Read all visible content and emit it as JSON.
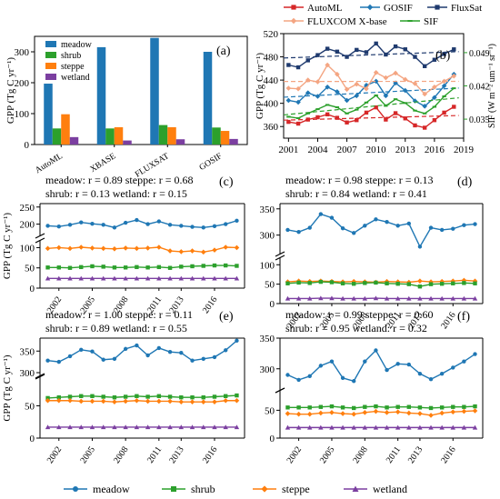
{
  "figure": {
    "legend_top": [
      {
        "name": "AutoML",
        "color": "#d62728",
        "marker": "square"
      },
      {
        "name": "GOSIF",
        "color": "#1f77b4",
        "marker": "diamond"
      },
      {
        "name": "FluxSat",
        "color": "#1f3a6e",
        "marker": "square"
      },
      {
        "name": "FLUXCOM X-base",
        "color": "#f4a582",
        "marker": "diamond"
      },
      {
        "name": "SIF",
        "color": "#2ca02c",
        "marker": "dash"
      }
    ],
    "legend_bottom": [
      {
        "name": "meadow",
        "color": "#1f77b4",
        "marker": "circle"
      },
      {
        "name": "shrub",
        "color": "#2ca02c",
        "marker": "square"
      },
      {
        "name": "steppe",
        "color": "#ff7f0e",
        "marker": "diamond"
      },
      {
        "name": "wetland",
        "color": "#7b3fa0",
        "marker": "triangle"
      }
    ]
  },
  "chart_data": [
    {
      "id": "a",
      "panel_label": "(a)",
      "type": "bar",
      "ylabel": "GPP (Tg C yr⁻¹)",
      "ylim": [
        0,
        350
      ],
      "yticks": [
        0,
        100,
        200,
        300
      ],
      "categories": [
        "AutoML",
        "XBASE",
        "FLUXSAT",
        "GOSIF"
      ],
      "series": [
        {
          "name": "meadow",
          "color": "#1f77b4",
          "values": [
            197,
            315,
            345,
            300
          ]
        },
        {
          "name": "shrub",
          "color": "#2ca02c",
          "values": [
            52,
            52,
            63,
            55
          ]
        },
        {
          "name": "steppe",
          "color": "#ff7f0e",
          "values": [
            98,
            56,
            56,
            44
          ]
        },
        {
          "name": "wetland",
          "color": "#7b3fa0",
          "values": [
            24,
            13,
            17,
            18
          ]
        }
      ],
      "legend_position": "top-left"
    },
    {
      "id": "b",
      "panel_label": "(b)",
      "type": "line",
      "ylabel": "GPP (Tg C yr⁻¹)",
      "y2label": "SIF (W m⁻² um⁻¹ sr⁻¹)",
      "ylim": [
        340,
        520
      ],
      "yticks": [
        360,
        400,
        440,
        480,
        520
      ],
      "y2lim": [
        0.031,
        0.053
      ],
      "y2ticks": [
        0.035,
        0.042,
        0.049
      ],
      "xlim": [
        2000.5,
        2019
      ],
      "xticks": [
        2001,
        2004,
        2007,
        2010,
        2013,
        2016,
        2019
      ],
      "x": [
        2001,
        2002,
        2003,
        2004,
        2005,
        2006,
        2007,
        2008,
        2009,
        2010,
        2011,
        2012,
        2013,
        2014,
        2015,
        2016,
        2017,
        2018
      ],
      "series": [
        {
          "name": "FluxSat",
          "axis": "left",
          "color": "#1f3a6e",
          "values": [
            466,
            462,
            474,
            483,
            494,
            489,
            480,
            492,
            488,
            503,
            484,
            498,
            493,
            480,
            464,
            475,
            485,
            493
          ]
        },
        {
          "name": "GOSIF",
          "axis": "left",
          "color": "#1f77b4",
          "values": [
            405,
            402,
            418,
            412,
            428,
            420,
            405,
            413,
            431,
            438,
            413,
            435,
            422,
            404,
            395,
            410,
            430,
            450
          ]
        },
        {
          "name": "FLUXCOM X-base",
          "axis": "left",
          "color": "#f4a582",
          "values": [
            426,
            425,
            440,
            437,
            466,
            450,
            424,
            433,
            425,
            453,
            444,
            452,
            441,
            434,
            416,
            428,
            438,
            447
          ]
        },
        {
          "name": "AutoML",
          "axis": "left",
          "color": "#d62728",
          "values": [
            368,
            365,
            372,
            376,
            381,
            375,
            367,
            371,
            384,
            393,
            372,
            383,
            374,
            362,
            358,
            371,
            384,
            394
          ]
        },
        {
          "name": "SIF",
          "axis": "right",
          "color": "#2ca02c",
          "values": [
            0.0355,
            0.0352,
            0.0362,
            0.0371,
            0.038,
            0.0375,
            0.0362,
            0.037,
            0.0385,
            0.04,
            0.0378,
            0.0392,
            0.0384,
            0.0368,
            0.0362,
            0.0376,
            0.0398,
            0.0415
          ]
        }
      ],
      "trend_lines": true
    },
    {
      "id": "c",
      "panel_label": "(c)",
      "type": "line",
      "ylabel": "GPP (Tg C yr⁻¹)",
      "annotations": [
        "meadow: r = 0.89 steppe: r = 0.68",
        "shrub: r = 0.13     wetland: r = 0.15"
      ],
      "x": [
        2001,
        2002,
        2003,
        2004,
        2005,
        2006,
        2007,
        2008,
        2009,
        2010,
        2011,
        2012,
        2013,
        2014,
        2015,
        2016,
        2017,
        2018
      ],
      "xticks": [
        2002,
        2005,
        2008,
        2011,
        2013,
        2016
      ],
      "upper": {
        "ylim": [
          175,
          260
        ],
        "yticks": [
          200,
          250
        ]
      },
      "lower": {
        "ylim": [
          0,
          110
        ],
        "yticks": [
          0,
          50,
          100
        ]
      },
      "series": [
        {
          "name": "meadow",
          "color": "#1f77b4",
          "segment": "upper",
          "values": [
            195,
            193,
            198,
            205,
            201,
            198,
            190,
            204,
            212,
            200,
            208,
            198,
            195,
            192,
            190,
            194,
            200,
            210
          ]
        },
        {
          "name": "steppe",
          "color": "#ff7f0e",
          "segment": "lower",
          "values": [
            98,
            100,
            98,
            101,
            99,
            98,
            97,
            99,
            98,
            99,
            101,
            92,
            90,
            92,
            89,
            94,
            101,
            100
          ]
        },
        {
          "name": "shrub",
          "color": "#2ca02c",
          "segment": "lower",
          "values": [
            51,
            51,
            50,
            52,
            54,
            53,
            51,
            51,
            52,
            51,
            52,
            50,
            53,
            54,
            55,
            56,
            56,
            55
          ]
        },
        {
          "name": "wetland",
          "color": "#7b3fa0",
          "segment": "lower",
          "values": [
            24,
            24,
            24,
            24,
            24,
            24,
            24,
            24,
            24,
            24,
            24,
            24,
            24,
            24,
            24,
            24,
            24,
            24
          ]
        }
      ]
    },
    {
      "id": "d",
      "panel_label": "(d)",
      "type": "line",
      "ylabel": "",
      "annotations": [
        "meadow: r = 0.98 steppe: r = 0.13",
        "shrub: r = 0.84     wetland: r = 0.41"
      ],
      "x": [
        2001,
        2002,
        2003,
        2004,
        2005,
        2006,
        2007,
        2008,
        2009,
        2010,
        2011,
        2012,
        2013,
        2014,
        2015,
        2016,
        2017,
        2018
      ],
      "xticks": [
        2002,
        2005,
        2008,
        2011,
        2013,
        2016
      ],
      "upper": {
        "ylim": [
          270,
          360
        ],
        "yticks": [
          300,
          350
        ]
      },
      "lower": {
        "ylim": [
          0,
          110
        ],
        "yticks": [
          0,
          50,
          100
        ]
      },
      "series": [
        {
          "name": "meadow",
          "color": "#1f77b4",
          "segment": "upper",
          "values": [
            310,
            306,
            314,
            340,
            333,
            313,
            304,
            318,
            330,
            325,
            318,
            322,
            278,
            314,
            310,
            312,
            319,
            321
          ]
        },
        {
          "name": "steppe",
          "color": "#ff7f0e",
          "segment": "lower",
          "values": [
            56,
            58,
            57,
            58,
            57,
            56,
            57,
            56,
            55,
            57,
            56,
            55,
            58,
            56,
            57,
            58,
            60,
            58
          ]
        },
        {
          "name": "shrub",
          "color": "#2ca02c",
          "segment": "lower",
          "values": [
            52,
            54,
            53,
            56,
            55,
            52,
            51,
            53,
            54,
            52,
            51,
            50,
            44,
            50,
            51,
            52,
            53,
            52
          ]
        },
        {
          "name": "wetland",
          "color": "#7b3fa0",
          "segment": "lower",
          "values": [
            13,
            13,
            13,
            14,
            14,
            13,
            13,
            13,
            14,
            13,
            13,
            13,
            13,
            13,
            13,
            13,
            13,
            13
          ]
        }
      ]
    },
    {
      "id": "e",
      "panel_label": "(e)",
      "type": "line",
      "ylabel": "GPP (Tg C yr⁻¹)",
      "annotations": [
        "meadow: r = 1.00 steppe: r = 0.11",
        "shrub: r = 0.89     wetland: r = 0.55"
      ],
      "x": [
        2001,
        2002,
        2003,
        2004,
        2005,
        2006,
        2007,
        2008,
        2009,
        2010,
        2011,
        2012,
        2013,
        2014,
        2015,
        2016,
        2017,
        2018
      ],
      "xticks": [
        2002,
        2005,
        2008,
        2011,
        2013,
        2016
      ],
      "upper": {
        "ylim": [
          300,
          380
        ],
        "yticks": [
          300,
          350
        ]
      },
      "lower": {
        "ylim": [
          0,
          90
        ],
        "yticks": [
          0,
          50
        ]
      },
      "series": [
        {
          "name": "meadow",
          "color": "#1f77b4",
          "segment": "upper",
          "values": [
            328,
            325,
            338,
            353,
            349,
            330,
            332,
            355,
            363,
            340,
            357,
            348,
            346,
            328,
            332,
            336,
            352,
            374
          ]
        },
        {
          "name": "shrub",
          "color": "#2ca02c",
          "segment": "lower",
          "values": [
            62,
            63,
            64,
            65,
            65,
            64,
            63,
            64,
            65,
            64,
            65,
            64,
            63,
            63,
            63,
            64,
            65,
            66
          ]
        },
        {
          "name": "steppe",
          "color": "#ff7f0e",
          "segment": "lower",
          "values": [
            58,
            58,
            58,
            57,
            57,
            57,
            56,
            57,
            58,
            57,
            57,
            57,
            56,
            56,
            56,
            56,
            58,
            58
          ]
        },
        {
          "name": "wetland",
          "color": "#7b3fa0",
          "segment": "lower",
          "values": [
            17,
            17,
            17,
            17,
            17,
            17,
            17,
            17,
            17,
            17,
            17,
            17,
            17,
            17,
            17,
            17,
            17,
            17
          ]
        }
      ]
    },
    {
      "id": "f",
      "panel_label": "(f)",
      "type": "line",
      "ylabel": "",
      "annotations": [
        "meadow: r = 0.99 steppe: r = 0.60",
        "shrub: r = 0.95     wetland: r = 0.32"
      ],
      "x": [
        2001,
        2002,
        2003,
        2004,
        2005,
        2006,
        2007,
        2008,
        2009,
        2010,
        2011,
        2012,
        2013,
        2014,
        2015,
        2016,
        2017,
        2018
      ],
      "xticks": [
        2002,
        2005,
        2008,
        2011,
        2013,
        2016
      ],
      "upper": {
        "ylim": [
          270,
          350
        ],
        "yticks": [
          300,
          350
        ]
      },
      "lower": {
        "ylim": [
          0,
          80
        ],
        "yticks": [
          0,
          50
        ]
      },
      "series": [
        {
          "name": "meadow",
          "color": "#1f77b4",
          "segment": "upper",
          "values": [
            290,
            282,
            288,
            305,
            312,
            285,
            280,
            312,
            330,
            298,
            308,
            307,
            292,
            283,
            292,
            302,
            312,
            324
          ]
        },
        {
          "name": "shrub",
          "color": "#2ca02c",
          "segment": "lower",
          "values": [
            55,
            55,
            55,
            56,
            57,
            55,
            54,
            56,
            57,
            55,
            56,
            56,
            55,
            54,
            55,
            56,
            56,
            57
          ]
        },
        {
          "name": "steppe",
          "color": "#ff7f0e",
          "segment": "lower",
          "values": [
            44,
            43,
            43,
            45,
            46,
            44,
            43,
            46,
            48,
            46,
            47,
            45,
            44,
            41,
            45,
            47,
            48,
            49
          ]
        },
        {
          "name": "wetland",
          "color": "#7b3fa0",
          "segment": "lower",
          "values": [
            19,
            19,
            19,
            19,
            19,
            19,
            19,
            19,
            19,
            19,
            19,
            19,
            19,
            19,
            19,
            19,
            19,
            19
          ]
        }
      ]
    }
  ]
}
